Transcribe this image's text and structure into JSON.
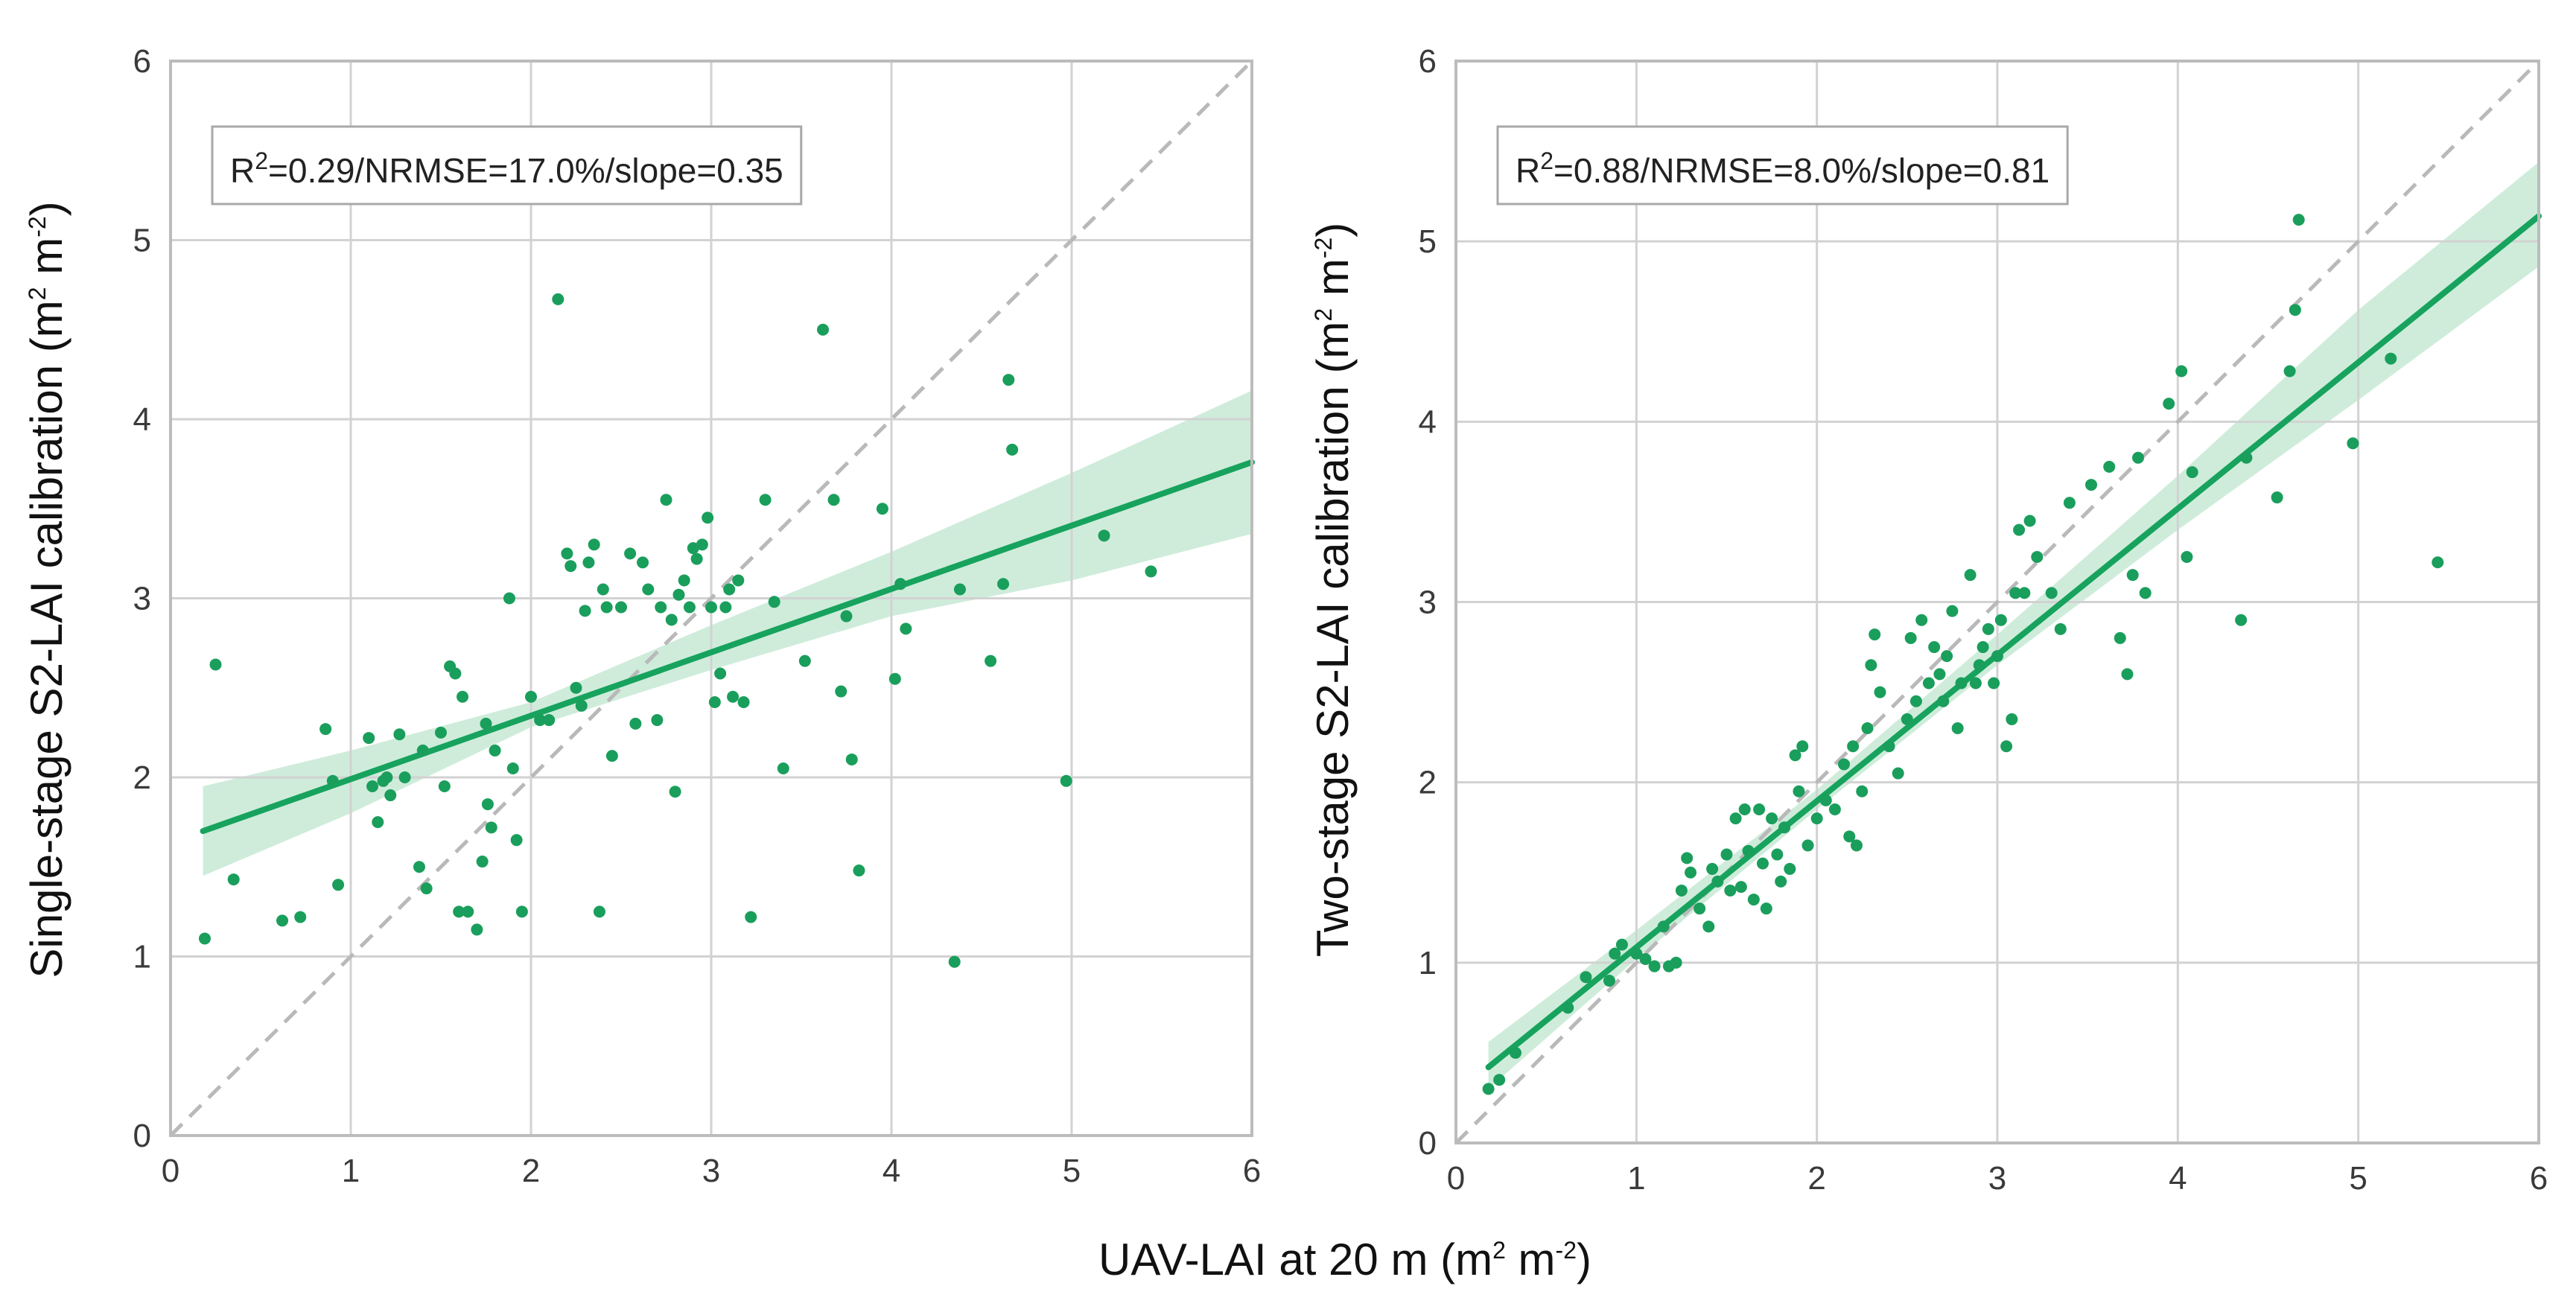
{
  "xlabel": {
    "pre": "UAV-LAI at 20 m (m",
    "sup1": "2",
    "mid": " m",
    "sup2": "-2",
    "post": ")"
  },
  "colors": {
    "point": "#1a9e5c",
    "line": "#17a35d",
    "band": "#bfe6cf",
    "grid": "#d2d2d2",
    "spine": "#bcbcbc",
    "identity": "#b9b9b9"
  },
  "chart_data": [
    {
      "type": "scatter",
      "panel": "left",
      "ylabel": {
        "pre": "Single-stage S2-LAI calibration (m",
        "sup1": "2",
        "mid": " m",
        "sup2": "-2",
        "post": ")"
      },
      "annotation": {
        "pre": "R",
        "sup": "2",
        "post": "=0.29/NRMSE=17.0%/slope=0.35"
      },
      "xlim": [
        0,
        6
      ],
      "ylim": [
        0,
        6
      ],
      "xticks": [
        0,
        1,
        2,
        3,
        4,
        5,
        6
      ],
      "yticks": [
        0,
        1,
        2,
        3,
        4,
        5,
        6
      ],
      "grid": true,
      "identity_line": true,
      "fit": {
        "x": [
          0.18,
          6.0
        ],
        "y": [
          1.7,
          3.76
        ]
      },
      "band": {
        "x": [
          0.18,
          1,
          2,
          3,
          4,
          5,
          6.0
        ],
        "lower": [
          1.45,
          1.8,
          2.28,
          2.6,
          2.9,
          3.1,
          3.36
        ],
        "upper": [
          1.95,
          2.15,
          2.42,
          2.85,
          3.26,
          3.7,
          4.16
        ]
      },
      "points": {
        "x": [
          0.19,
          0.25,
          0.35,
          0.62,
          0.72,
          0.86,
          0.9,
          0.93,
          1.1,
          1.12,
          1.15,
          1.18,
          1.2,
          1.22,
          1.27,
          1.3,
          1.38,
          1.4,
          1.42,
          1.5,
          1.52,
          1.55,
          1.58,
          1.6,
          1.62,
          1.65,
          1.7,
          1.73,
          1.75,
          1.76,
          1.78,
          1.8,
          1.88,
          1.9,
          1.92,
          1.95,
          2.0,
          2.05,
          2.1,
          2.15,
          2.2,
          2.22,
          2.25,
          2.28,
          2.3,
          2.32,
          2.35,
          2.38,
          2.4,
          2.42,
          2.45,
          2.5,
          2.55,
          2.58,
          2.62,
          2.65,
          2.7,
          2.72,
          2.75,
          2.78,
          2.8,
          2.82,
          2.85,
          2.88,
          2.9,
          2.92,
          2.95,
          2.98,
          3.0,
          3.02,
          3.05,
          3.08,
          3.1,
          3.12,
          3.15,
          3.18,
          3.22,
          3.3,
          3.35,
          3.4,
          3.52,
          3.62,
          3.68,
          3.72,
          3.78,
          3.82,
          3.95,
          4.02,
          4.05,
          4.08,
          4.35,
          4.38,
          4.55,
          4.62,
          4.65,
          4.67,
          4.97,
          5.18,
          5.44,
          3.75
        ],
        "y": [
          1.1,
          2.63,
          1.43,
          1.2,
          1.22,
          2.27,
          1.98,
          1.4,
          2.22,
          1.95,
          1.75,
          1.98,
          2.0,
          1.9,
          2.24,
          2.0,
          1.5,
          2.15,
          1.38,
          2.25,
          1.95,
          2.62,
          2.58,
          1.25,
          2.45,
          1.25,
          1.15,
          1.53,
          2.3,
          1.85,
          1.72,
          2.15,
          3.0,
          2.05,
          1.65,
          1.25,
          2.45,
          2.32,
          2.32,
          4.67,
          3.25,
          3.18,
          2.5,
          2.4,
          2.93,
          3.2,
          3.3,
          1.25,
          3.05,
          2.95,
          2.12,
          2.95,
          3.25,
          2.3,
          3.2,
          3.05,
          2.32,
          2.95,
          3.55,
          2.88,
          1.92,
          3.02,
          3.1,
          2.95,
          3.28,
          3.22,
          3.3,
          3.45,
          2.95,
          2.42,
          2.58,
          2.95,
          3.05,
          2.45,
          3.1,
          2.42,
          1.22,
          3.55,
          2.98,
          2.05,
          2.65,
          4.5,
          3.55,
          2.48,
          2.1,
          1.48,
          3.5,
          2.55,
          3.08,
          2.83,
          0.97,
          3.05,
          2.65,
          3.08,
          4.22,
          3.83,
          1.98,
          3.35,
          3.15,
          2.9
        ]
      }
    },
    {
      "type": "scatter",
      "panel": "right",
      "ylabel": {
        "pre": "Two-stage S2-LAI calibration (m",
        "sup1": "2",
        "mid": " m",
        "sup2": "-2",
        "post": ")"
      },
      "annotation": {
        "pre": "R",
        "sup": "2",
        "post": "=0.88/NRMSE=8.0%/slope=0.81"
      },
      "xlim": [
        0,
        6
      ],
      "ylim": [
        0,
        6
      ],
      "xticks": [
        0,
        1,
        2,
        3,
        4,
        5,
        6
      ],
      "yticks": [
        0,
        1,
        2,
        3,
        4,
        5,
        6
      ],
      "grid": true,
      "identity_line": true,
      "fit": {
        "x": [
          0.18,
          6.0
        ],
        "y": [
          0.42,
          5.14
        ]
      },
      "band": {
        "x": [
          0.18,
          1,
          2,
          3,
          4,
          5,
          6.0
        ],
        "lower": [
          0.3,
          1.02,
          1.85,
          2.65,
          3.4,
          4.12,
          4.86
        ],
        "upper": [
          0.56,
          1.18,
          1.96,
          2.82,
          3.7,
          4.62,
          5.44
        ]
      },
      "points": {
        "x": [
          0.18,
          0.24,
          0.33,
          0.62,
          0.72,
          0.85,
          0.88,
          0.92,
          1.0,
          1.05,
          1.1,
          1.15,
          1.18,
          1.22,
          1.25,
          1.28,
          1.3,
          1.35,
          1.4,
          1.42,
          1.45,
          1.5,
          1.52,
          1.55,
          1.58,
          1.6,
          1.62,
          1.65,
          1.68,
          1.7,
          1.72,
          1.75,
          1.78,
          1.8,
          1.82,
          1.85,
          1.88,
          1.9,
          1.92,
          1.95,
          2.0,
          2.05,
          2.1,
          2.15,
          2.18,
          2.2,
          2.22,
          2.25,
          2.28,
          2.3,
          2.32,
          2.35,
          2.4,
          2.45,
          2.5,
          2.52,
          2.55,
          2.58,
          2.62,
          2.65,
          2.68,
          2.7,
          2.72,
          2.75,
          2.78,
          2.8,
          2.85,
          2.88,
          2.9,
          2.92,
          2.95,
          2.98,
          3.0,
          3.02,
          3.05,
          3.08,
          3.1,
          3.12,
          3.15,
          3.18,
          3.22,
          3.3,
          3.35,
          3.4,
          3.52,
          3.62,
          3.68,
          3.72,
          3.78,
          3.82,
          3.95,
          4.02,
          4.05,
          4.08,
          4.35,
          4.38,
          4.55,
          4.62,
          4.65,
          4.67,
          4.97,
          5.18,
          5.44,
          3.75
        ],
        "y": [
          0.3,
          0.35,
          0.5,
          0.75,
          0.92,
          0.9,
          1.05,
          1.1,
          1.05,
          1.02,
          0.98,
          1.2,
          0.98,
          1.0,
          1.4,
          1.58,
          1.5,
          1.3,
          1.2,
          1.52,
          1.45,
          1.6,
          1.4,
          1.8,
          1.42,
          1.85,
          1.62,
          1.35,
          1.85,
          1.55,
          1.3,
          1.8,
          1.6,
          1.45,
          1.75,
          1.52,
          2.15,
          1.95,
          2.2,
          1.65,
          1.8,
          1.9,
          1.85,
          2.1,
          1.7,
          2.2,
          1.65,
          1.95,
          2.3,
          2.65,
          2.82,
          2.5,
          2.2,
          2.05,
          2.35,
          2.8,
          2.45,
          2.9,
          2.55,
          2.75,
          2.6,
          2.45,
          2.7,
          2.95,
          2.3,
          2.55,
          3.15,
          2.55,
          2.65,
          2.75,
          2.85,
          2.55,
          2.7,
          2.9,
          2.2,
          2.35,
          3.05,
          3.4,
          3.05,
          3.45,
          3.25,
          3.05,
          2.85,
          3.55,
          3.65,
          3.75,
          2.8,
          2.6,
          3.8,
          3.05,
          4.1,
          4.28,
          3.25,
          3.72,
          2.9,
          3.8,
          3.58,
          4.28,
          4.62,
          5.12,
          3.88,
          4.35,
          3.22,
          3.15
        ]
      }
    }
  ]
}
